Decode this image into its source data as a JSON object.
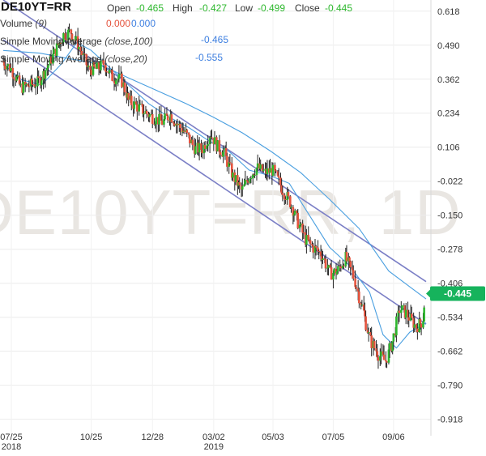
{
  "header": {
    "symbol": "DE10YT=RR",
    "open_label": "Open",
    "open_value": "-0.465",
    "high_label": "High",
    "high_value": "-0.427",
    "low_label": "Low",
    "low_value": "-0.499",
    "close_label": "Close",
    "close_value": "-0.445"
  },
  "legend": {
    "volume_label": "Volume",
    "volume_param": "(9)",
    "volume_value_a": "0.000",
    "volume_value_b": "0.000",
    "sma100_label": "Simple Moving Average",
    "sma100_param": "(close,100)",
    "sma100_value": "-0.465",
    "sma20_label": "Simple Moving Average",
    "sma20_param": "(close,20)",
    "sma20_value": "-0.555"
  },
  "watermark": "DE10YT=RR, 1D",
  "last_price_badge": "-0.445",
  "colors": {
    "up": "#2eb82e",
    "down": "#e5533d",
    "candle": "#222222",
    "sma": "#4a9fe0",
    "channel": "#7b7fc6",
    "badge": "#16b35c"
  },
  "chart_data": {
    "type": "candlestick",
    "title": "DE10YT=RR",
    "y_ticks": [
      "0.618",
      "0.490",
      "0.362",
      "0.234",
      "0.106",
      "-0.022",
      "-0.150",
      "-0.278",
      "-0.406",
      "-0.534",
      "-0.662",
      "-0.790",
      "-0.918"
    ],
    "x_ticks": [
      {
        "label": "07/25",
        "sub": "2018"
      },
      {
        "label": "10/25",
        "sub": ""
      },
      {
        "label": "12/28",
        "sub": ""
      },
      {
        "label": "03/02",
        "sub": "2019"
      },
      {
        "label": "05/03",
        "sub": ""
      },
      {
        "label": "07/05",
        "sub": ""
      },
      {
        "label": "09/06",
        "sub": ""
      }
    ],
    "x_range": [
      "2018-07-25",
      "2019-10-10"
    ],
    "y_range": [
      -0.98,
      0.66
    ],
    "close_series": [
      [
        "2018-07-25",
        0.43
      ],
      [
        "2018-08-03",
        0.4
      ],
      [
        "2018-08-13",
        0.33
      ],
      [
        "2018-08-22",
        0.34
      ],
      [
        "2018-08-31",
        0.35
      ],
      [
        "2018-09-10",
        0.41
      ],
      [
        "2018-09-18",
        0.47
      ],
      [
        "2018-09-27",
        0.53
      ],
      [
        "2018-10-04",
        0.54
      ],
      [
        "2018-10-12",
        0.49
      ],
      [
        "2018-10-22",
        0.4
      ],
      [
        "2018-10-31",
        0.4
      ],
      [
        "2018-11-08",
        0.42
      ],
      [
        "2018-11-16",
        0.37
      ],
      [
        "2018-11-26",
        0.36
      ],
      [
        "2018-12-04",
        0.28
      ],
      [
        "2018-12-12",
        0.26
      ],
      [
        "2018-12-20",
        0.24
      ],
      [
        "2018-12-28",
        0.22
      ],
      [
        "2019-01-08",
        0.2
      ],
      [
        "2019-01-16",
        0.23
      ],
      [
        "2019-01-24",
        0.19
      ],
      [
        "2019-02-01",
        0.16
      ],
      [
        "2019-02-11",
        0.1
      ],
      [
        "2019-02-19",
        0.1
      ],
      [
        "2019-02-27",
        0.16
      ],
      [
        "2019-03-06",
        0.11
      ],
      [
        "2019-03-14",
        0.08
      ],
      [
        "2019-03-22",
        0.0
      ],
      [
        "2019-04-01",
        -0.06
      ],
      [
        "2019-04-09",
        0.0
      ],
      [
        "2019-04-17",
        0.03
      ],
      [
        "2019-04-25",
        0.01
      ],
      [
        "2019-05-03",
        0.02
      ],
      [
        "2019-05-13",
        -0.05
      ],
      [
        "2019-05-21",
        -0.1
      ],
      [
        "2019-05-29",
        -0.17
      ],
      [
        "2019-06-06",
        -0.24
      ],
      [
        "2019-06-14",
        -0.27
      ],
      [
        "2019-06-24",
        -0.3
      ],
      [
        "2019-07-02",
        -0.37
      ],
      [
        "2019-07-10",
        -0.36
      ],
      [
        "2019-07-18",
        -0.31
      ],
      [
        "2019-07-26",
        -0.37
      ],
      [
        "2019-08-05",
        -0.5
      ],
      [
        "2019-08-13",
        -0.62
      ],
      [
        "2019-08-21",
        -0.67
      ],
      [
        "2019-08-29",
        -0.7
      ],
      [
        "2019-09-06",
        -0.62
      ],
      [
        "2019-09-13",
        -0.5
      ],
      [
        "2019-09-20",
        -0.52
      ],
      [
        "2019-09-30",
        -0.57
      ],
      [
        "2019-10-07",
        -0.55
      ],
      [
        "2019-10-10",
        -0.445
      ]
    ],
    "sma20_series": [
      [
        "2018-07-25",
        0.42
      ],
      [
        "2018-08-13",
        0.36
      ],
      [
        "2018-09-03",
        0.34
      ],
      [
        "2018-09-24",
        0.42
      ],
      [
        "2018-10-10",
        0.5
      ],
      [
        "2018-10-25",
        0.47
      ],
      [
        "2018-11-12",
        0.41
      ],
      [
        "2018-12-03",
        0.34
      ],
      [
        "2018-12-24",
        0.27
      ],
      [
        "2019-01-14",
        0.22
      ],
      [
        "2019-02-04",
        0.18
      ],
      [
        "2019-02-25",
        0.13
      ],
      [
        "2019-03-18",
        0.09
      ],
      [
        "2019-04-08",
        0.02
      ],
      [
        "2019-04-29",
        0.0
      ],
      [
        "2019-05-20",
        -0.03
      ],
      [
        "2019-06-10",
        -0.15
      ],
      [
        "2019-07-01",
        -0.27
      ],
      [
        "2019-07-22",
        -0.34
      ],
      [
        "2019-08-12",
        -0.44
      ],
      [
        "2019-08-26",
        -0.6
      ],
      [
        "2019-09-09",
        -0.65
      ],
      [
        "2019-09-23",
        -0.59
      ],
      [
        "2019-10-10",
        -0.555
      ]
    ],
    "sma100_series": [
      [
        "2018-07-25",
        0.47
      ],
      [
        "2018-09-01",
        0.46
      ],
      [
        "2018-10-01",
        0.44
      ],
      [
        "2018-11-01",
        0.42
      ],
      [
        "2018-12-01",
        0.37
      ],
      [
        "2019-01-01",
        0.32
      ],
      [
        "2019-02-01",
        0.27
      ],
      [
        "2019-03-01",
        0.22
      ],
      [
        "2019-04-01",
        0.16
      ],
      [
        "2019-05-01",
        0.09
      ],
      [
        "2019-06-01",
        0.01
      ],
      [
        "2019-07-01",
        -0.09
      ],
      [
        "2019-08-01",
        -0.2
      ],
      [
        "2019-09-01",
        -0.36
      ],
      [
        "2019-10-10",
        -0.465
      ]
    ],
    "trend_channel": {
      "upper": [
        [
          "2018-07-25",
          0.66
        ],
        [
          "2019-10-10",
          -0.4
        ]
      ],
      "lower": [
        [
          "2018-07-25",
          0.51
        ],
        [
          "2019-10-10",
          -0.56
        ]
      ]
    },
    "last_close": -0.445
  }
}
